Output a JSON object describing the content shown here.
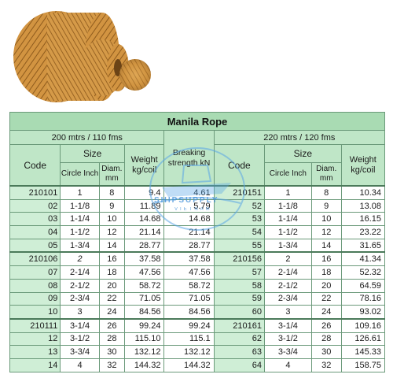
{
  "table": {
    "title": "Manila Rope",
    "left_section": "200 mtrs / 110 fms",
    "right_section": "220 mtrs / 120 fms",
    "code_label": "Code",
    "size_label": "Size",
    "circle_label": "Circle Inch",
    "diam_label": "Diam. mm",
    "weight_label": "Weight kg/coil",
    "breaking_label": "Breaking strength kN",
    "groups": [
      {
        "rows": [
          {
            "lcode": "210101",
            "lcircle": "1",
            "ldiam": "8",
            "lweight": "9.4",
            "break": "4.61",
            "rcode": "210151",
            "rcircle": "1",
            "rdiam": "8",
            "rweight": "10.34"
          },
          {
            "lcode": "02",
            "lcircle": "1-1/8",
            "ldiam": "9",
            "lweight": "11.89",
            "break": "5.79",
            "rcode": "52",
            "rcircle": "1-1/8",
            "rdiam": "9",
            "rweight": "13.08"
          },
          {
            "lcode": "03",
            "lcircle": "1-1/4",
            "ldiam": "10",
            "lweight": "14.68",
            "break": "14.68",
            "rcode": "53",
            "rcircle": "1-1/4",
            "rdiam": "10",
            "rweight": "16.15"
          },
          {
            "lcode": "04",
            "lcircle": "1-1/2",
            "ldiam": "12",
            "lweight": "21.14",
            "break": "21.14",
            "rcode": "54",
            "rcircle": "1-1/2",
            "rdiam": "12",
            "rweight": "23.22"
          },
          {
            "lcode": "05",
            "lcircle": "1-3/4",
            "ldiam": "14",
            "lweight": "28.77",
            "break": "28.77",
            "rcode": "55",
            "rcircle": "1-3/4",
            "rdiam": "14",
            "rweight": "31.65"
          }
        ]
      },
      {
        "rows": [
          {
            "lcode": "210106",
            "lcircle": "2",
            "ldiam": "16",
            "lweight": "37.58",
            "break": "37.58",
            "rcode": "210156",
            "rcircle": "2",
            "rdiam": "16",
            "rweight": "41.34"
          },
          {
            "lcode": "07",
            "lcircle": "2-1/4",
            "ldiam": "18",
            "lweight": "47.56",
            "break": "47.56",
            "rcode": "57",
            "rcircle": "2-1/4",
            "rdiam": "18",
            "rweight": "52.32"
          },
          {
            "lcode": "08",
            "lcircle": "2-1/2",
            "ldiam": "20",
            "lweight": "58.72",
            "break": "58.72",
            "rcode": "58",
            "rcircle": "2-1/2",
            "rdiam": "20",
            "rweight": "64.59"
          },
          {
            "lcode": "09",
            "lcircle": "2-3/4",
            "ldiam": "22",
            "lweight": "71.05",
            "break": "71.05",
            "rcode": "59",
            "rcircle": "2-3/4",
            "rdiam": "22",
            "rweight": "78.16"
          },
          {
            "lcode": "10",
            "lcircle": "3",
            "ldiam": "24",
            "lweight": "84.56",
            "break": "84.56",
            "rcode": "60",
            "rcircle": "3",
            "rdiam": "24",
            "rweight": "93.02"
          }
        ]
      },
      {
        "rows": [
          {
            "lcode": "210111",
            "lcircle": "3-1/4",
            "ldiam": "26",
            "lweight": "99.24",
            "break": "99.24",
            "rcode": "210161",
            "rcircle": "3-1/4",
            "rdiam": "26",
            "rweight": "109.16"
          },
          {
            "lcode": "12",
            "lcircle": "3-1/2",
            "ldiam": "28",
            "lweight": "115.10",
            "break": "115.1",
            "rcode": "62",
            "rcircle": "3-1/2",
            "rdiam": "28",
            "rweight": "126.61"
          },
          {
            "lcode": "13",
            "lcircle": "3-3/4",
            "ldiam": "30",
            "lweight": "132.12",
            "break": "132.12",
            "rcode": "63",
            "rcircle": "3-3/4",
            "rdiam": "30",
            "rweight": "145.33"
          },
          {
            "lcode": "14",
            "lcircle": "4",
            "ldiam": "32",
            "lweight": "144.32",
            "break": "144.32",
            "rcode": "64",
            "rcircle": "4",
            "rdiam": "32",
            "rweight": "158.75"
          }
        ]
      }
    ]
  },
  "watermark": {
    "text": "SHIPSUPPLY",
    "sub": "VIETNAM"
  },
  "colors": {
    "header": "#a9dbb3",
    "header_light": "#bfe6c7",
    "code_col": "#cfeed6",
    "rope": "#c98a34"
  }
}
